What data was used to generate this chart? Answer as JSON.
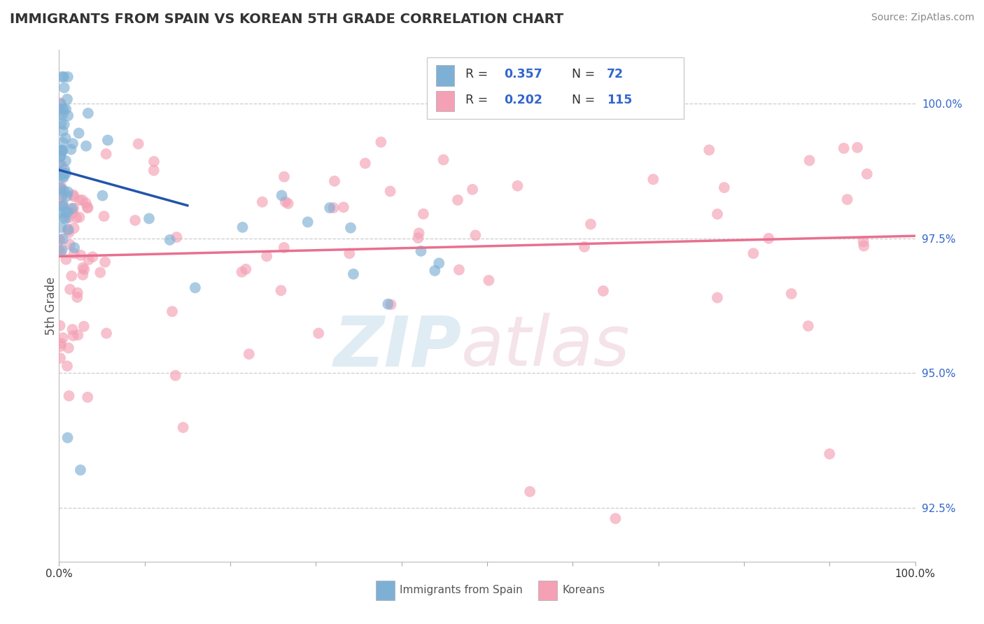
{
  "title": "IMMIGRANTS FROM SPAIN VS KOREAN 5TH GRADE CORRELATION CHART",
  "source": "Source: ZipAtlas.com",
  "ylabel": "5th Grade",
  "ytick_values": [
    92.5,
    95.0,
    97.5,
    100.0
  ],
  "xlim": [
    0.0,
    100.0
  ],
  "ylim": [
    91.5,
    101.0
  ],
  "legend_r1": "0.357",
  "legend_n1": "72",
  "legend_r2": "0.202",
  "legend_n2": "115",
  "blue_color": "#7EB0D5",
  "pink_color": "#F4A0B5",
  "blue_line_color": "#2255AA",
  "pink_line_color": "#E87090",
  "watermark_zip": "ZIP",
  "watermark_atlas": "atlas"
}
